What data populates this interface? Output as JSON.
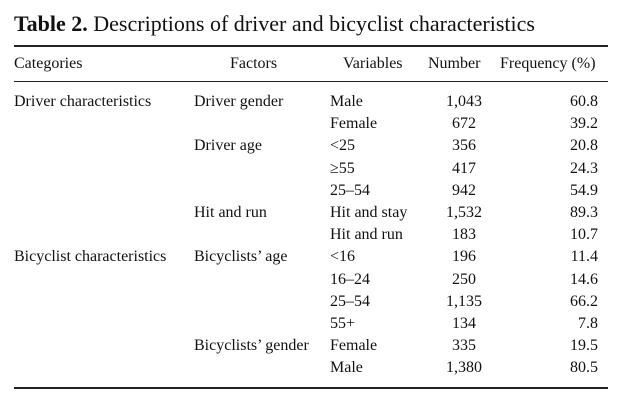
{
  "caption": {
    "label": "Table 2.",
    "text": "Descriptions of driver and bicyclist characteristics"
  },
  "headers": {
    "categories": "Categories",
    "factors": "Factors",
    "variables": "Variables",
    "number": "Number",
    "frequency": "Frequency (%)"
  },
  "rows": [
    {
      "category": "Driver characteristics",
      "factor": "Driver gender",
      "variable": "Male",
      "number": "1,043",
      "frequency": "60.8"
    },
    {
      "category": "",
      "factor": "",
      "variable": "Female",
      "number": "672",
      "frequency": "39.2"
    },
    {
      "category": "",
      "factor": "Driver age",
      "variable": "<25",
      "number": "356",
      "frequency": "20.8"
    },
    {
      "category": "",
      "factor": "",
      "variable": "≥55",
      "number": "417",
      "frequency": "24.3"
    },
    {
      "category": "",
      "factor": "",
      "variable": "25–54",
      "number": "942",
      "frequency": "54.9"
    },
    {
      "category": "",
      "factor": "Hit and run",
      "variable": "Hit and stay",
      "number": "1,532",
      "frequency": "89.3"
    },
    {
      "category": "",
      "factor": "",
      "variable": "Hit and run",
      "number": "183",
      "frequency": "10.7"
    },
    {
      "category": "Bicyclist characteristics",
      "factor": "Bicyclists’ age",
      "variable": "<16",
      "number": "196",
      "frequency": "11.4"
    },
    {
      "category": "",
      "factor": "",
      "variable": "16–24",
      "number": "250",
      "frequency": "14.6"
    },
    {
      "category": "",
      "factor": "",
      "variable": "25–54",
      "number": "1,135",
      "frequency": "66.2"
    },
    {
      "category": "",
      "factor": "",
      "variable": "55+",
      "number": "134",
      "frequency": "7.8"
    },
    {
      "category": "",
      "factor": "Bicyclists’ gender",
      "variable": "Female",
      "number": "335",
      "frequency": "19.5"
    },
    {
      "category": "",
      "factor": "",
      "variable": "Male",
      "number": "1,380",
      "frequency": "80.5"
    }
  ]
}
